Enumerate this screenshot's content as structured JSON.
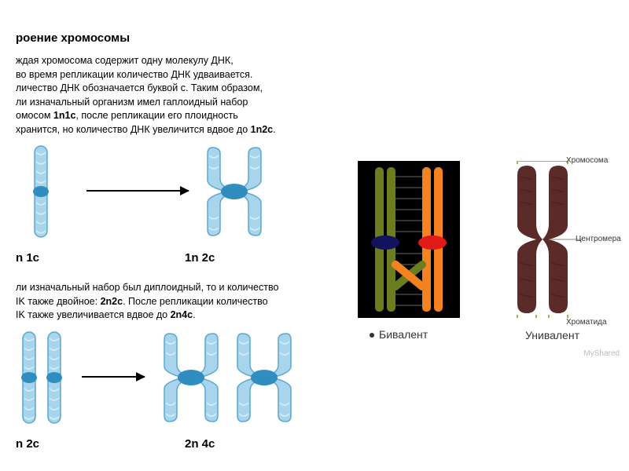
{
  "title": "роение хромосомы",
  "para1_lines": [
    "ждая хромосома содержит одну молекулу ДНК,",
    "во время репликации количество ДНК удваивается.",
    "личество ДНК обозначается буквой с. Таким образом,",
    "ли изначальный организм имел гаплоидный набор",
    "омосом <b>1n1c</b>, после репликации его плоидность",
    "хранится, но количество ДНК увеличится вдвое до <b>1n2c</b>."
  ],
  "row1": {
    "left_label": "n  1c",
    "right_label": "1n  2c"
  },
  "para2_lines": [
    "ли изначальный набор был диплоидный, то и количество",
    "IK также двойное: <b>2n2c</b>. После репликации количество",
    "IK также увеличивается вдвое до <b>2n4c</b>."
  ],
  "row2": {
    "left_label": "n  2c",
    "right_label": "2n  4c"
  },
  "chromatid_colors": {
    "fill": "#a8d5ec",
    "stroke": "#5aa9cf",
    "centromere": "#2f8dc0",
    "helix": "#d3ecf7"
  },
  "bivalent": {
    "caption": "Бивалент",
    "bg": "#000000",
    "pair1_color": "#6b7d1f",
    "pair2_color": "#f58220",
    "rungs_color": "#333333",
    "centromere1": "#12125e",
    "centromere2": "#e01919"
  },
  "univalent": {
    "caption": "Унивалент",
    "label_top": "Хромосома",
    "label_mid": "Центромера",
    "label_bot": "Хроматида",
    "color": "#5a2b28",
    "bracket_color": "#8bc34a"
  },
  "watermark": "MyShared"
}
